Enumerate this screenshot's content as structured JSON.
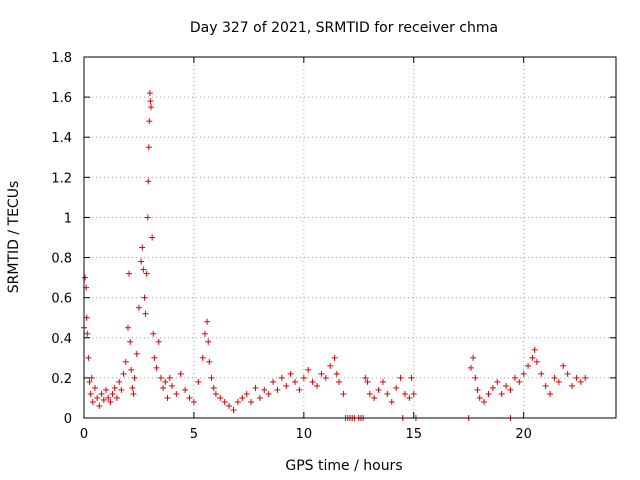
{
  "chart_data": {
    "type": "scatter",
    "title": "Day 327 of 2021, SRMTID for receiver chma",
    "xlabel": "GPS time / hours",
    "ylabel": "SRMTID / TECUs",
    "xlim": [
      0,
      24.2
    ],
    "ylim": [
      0,
      1.8
    ],
    "xticks": [
      0,
      5,
      10,
      15,
      20
    ],
    "xtick_labels": [
      "0",
      "5",
      "10",
      "15",
      "20"
    ],
    "yticks": [
      0,
      0.2,
      0.4,
      0.6,
      0.8,
      1.0,
      1.2,
      1.4,
      1.6,
      1.8
    ],
    "ytick_labels": [
      "0",
      "0.2",
      "0.4",
      "0.6",
      "0.8",
      "1",
      "1.2",
      "1.4",
      "1.6",
      "1.8"
    ],
    "grid": true,
    "marker": "plus",
    "color": "#e00000",
    "series": [
      {
        "name": "SRMTID",
        "x": [
          0.0,
          0.05,
          0.1,
          0.12,
          0.15,
          0.2,
          0.25,
          0.3,
          0.35,
          0.4,
          0.5,
          0.6,
          0.7,
          0.8,
          0.9,
          1.0,
          1.1,
          1.2,
          1.3,
          1.4,
          1.5,
          1.6,
          1.7,
          1.8,
          1.9,
          2.0,
          2.05,
          2.1,
          2.15,
          2.2,
          2.25,
          2.3,
          2.4,
          2.5,
          2.6,
          2.65,
          2.7,
          2.75,
          2.8,
          2.85,
          2.9,
          2.92,
          2.95,
          2.97,
          3.0,
          3.02,
          3.05,
          3.1,
          3.15,
          3.2,
          3.3,
          3.4,
          3.5,
          3.6,
          3.7,
          3.8,
          3.9,
          4.0,
          4.2,
          4.4,
          4.6,
          4.8,
          5.0,
          5.2,
          5.4,
          5.5,
          5.6,
          5.65,
          5.7,
          5.8,
          5.9,
          6.0,
          6.2,
          6.4,
          6.6,
          6.8,
          7.0,
          7.2,
          7.4,
          7.6,
          7.8,
          8.0,
          8.2,
          8.4,
          8.6,
          8.8,
          9.0,
          9.2,
          9.4,
          9.6,
          9.8,
          10.0,
          10.2,
          10.4,
          10.6,
          10.8,
          11.0,
          11.2,
          11.4,
          11.5,
          11.6,
          11.8,
          12.8,
          12.9,
          13.0,
          13.2,
          13.4,
          13.6,
          13.8,
          14.0,
          14.2,
          14.4,
          14.6,
          14.8,
          14.9,
          15.0,
          17.6,
          17.7,
          17.8,
          17.9,
          18.0,
          18.2,
          18.4,
          18.6,
          18.8,
          19.0,
          19.2,
          19.4,
          19.6,
          19.8,
          20.0,
          20.2,
          20.4,
          20.5,
          20.6,
          20.8,
          21.0,
          21.2,
          21.4,
          21.6,
          21.8,
          22.0,
          22.2,
          22.4,
          22.6,
          22.8
        ],
        "y": [
          0.45,
          0.7,
          0.65,
          0.5,
          0.42,
          0.3,
          0.18,
          0.12,
          0.2,
          0.08,
          0.15,
          0.1,
          0.06,
          0.12,
          0.09,
          0.14,
          0.1,
          0.08,
          0.12,
          0.15,
          0.1,
          0.18,
          0.14,
          0.22,
          0.28,
          0.45,
          0.72,
          0.38,
          0.24,
          0.15,
          0.12,
          0.2,
          0.32,
          0.55,
          0.78,
          0.85,
          0.74,
          0.6,
          0.52,
          0.72,
          1.0,
          1.18,
          1.35,
          1.48,
          1.62,
          1.58,
          1.55,
          0.9,
          0.42,
          0.3,
          0.25,
          0.38,
          0.2,
          0.15,
          0.18,
          0.1,
          0.2,
          0.16,
          0.12,
          0.22,
          0.14,
          0.1,
          0.08,
          0.18,
          0.3,
          0.42,
          0.48,
          0.38,
          0.28,
          0.2,
          0.15,
          0.12,
          0.1,
          0.08,
          0.06,
          0.04,
          0.08,
          0.1,
          0.12,
          0.08,
          0.15,
          0.1,
          0.14,
          0.12,
          0.18,
          0.14,
          0.2,
          0.16,
          0.22,
          0.18,
          0.14,
          0.2,
          0.24,
          0.18,
          0.16,
          0.22,
          0.2,
          0.26,
          0.3,
          0.22,
          0.18,
          0.12,
          0.2,
          0.18,
          0.12,
          0.1,
          0.14,
          0.18,
          0.12,
          0.08,
          0.15,
          0.2,
          0.12,
          0.1,
          0.2,
          0.12,
          0.25,
          0.3,
          0.2,
          0.14,
          0.1,
          0.08,
          0.12,
          0.15,
          0.18,
          0.12,
          0.16,
          0.14,
          0.2,
          0.18,
          0.22,
          0.26,
          0.3,
          0.34,
          0.28,
          0.22,
          0.16,
          0.12,
          0.2,
          0.18,
          0.26,
          0.22,
          0.16,
          0.2,
          0.18,
          0.2
        ]
      }
    ],
    "gaps_at_zero_x": [
      11.9,
      12.0,
      12.1,
      12.2,
      12.3,
      12.5,
      12.6,
      12.7,
      14.5,
      15.1,
      17.5,
      19.4
    ]
  }
}
